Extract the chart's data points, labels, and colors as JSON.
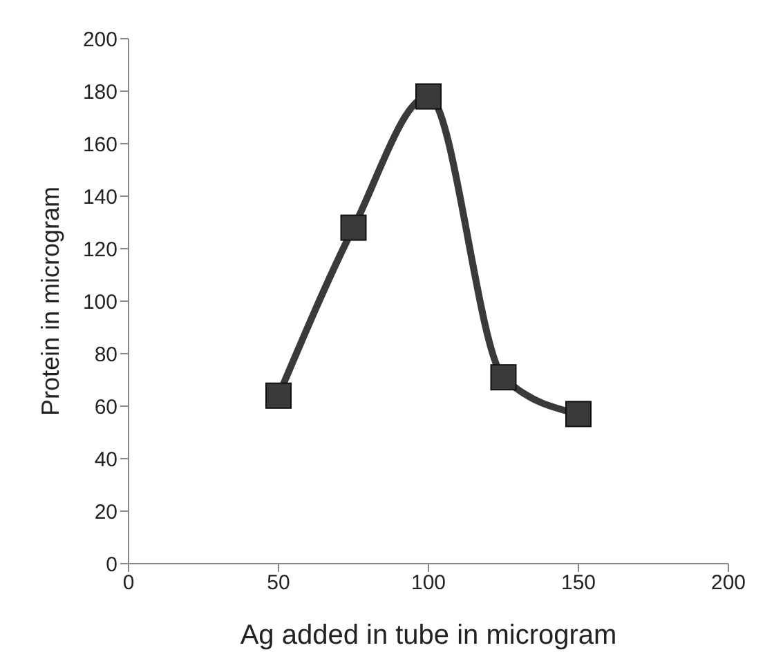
{
  "chart_data": {
    "type": "line",
    "xlabel": "Ag added in tube in microgram",
    "ylabel": "Protein in microgram",
    "x": [
      50,
      75,
      100,
      125,
      150
    ],
    "series": [
      {
        "color": "#3a3a3a",
        "values": [
          64,
          128,
          178,
          71,
          57
        ]
      }
    ],
    "xlim": [
      0,
      200
    ],
    "xticks": [
      0,
      50,
      100,
      150,
      200
    ],
    "ylim": [
      0,
      200
    ],
    "yticks": [
      0,
      20,
      40,
      60,
      80,
      100,
      120,
      140,
      160,
      180,
      200
    ],
    "marker": "square",
    "line_style": "solid"
  }
}
